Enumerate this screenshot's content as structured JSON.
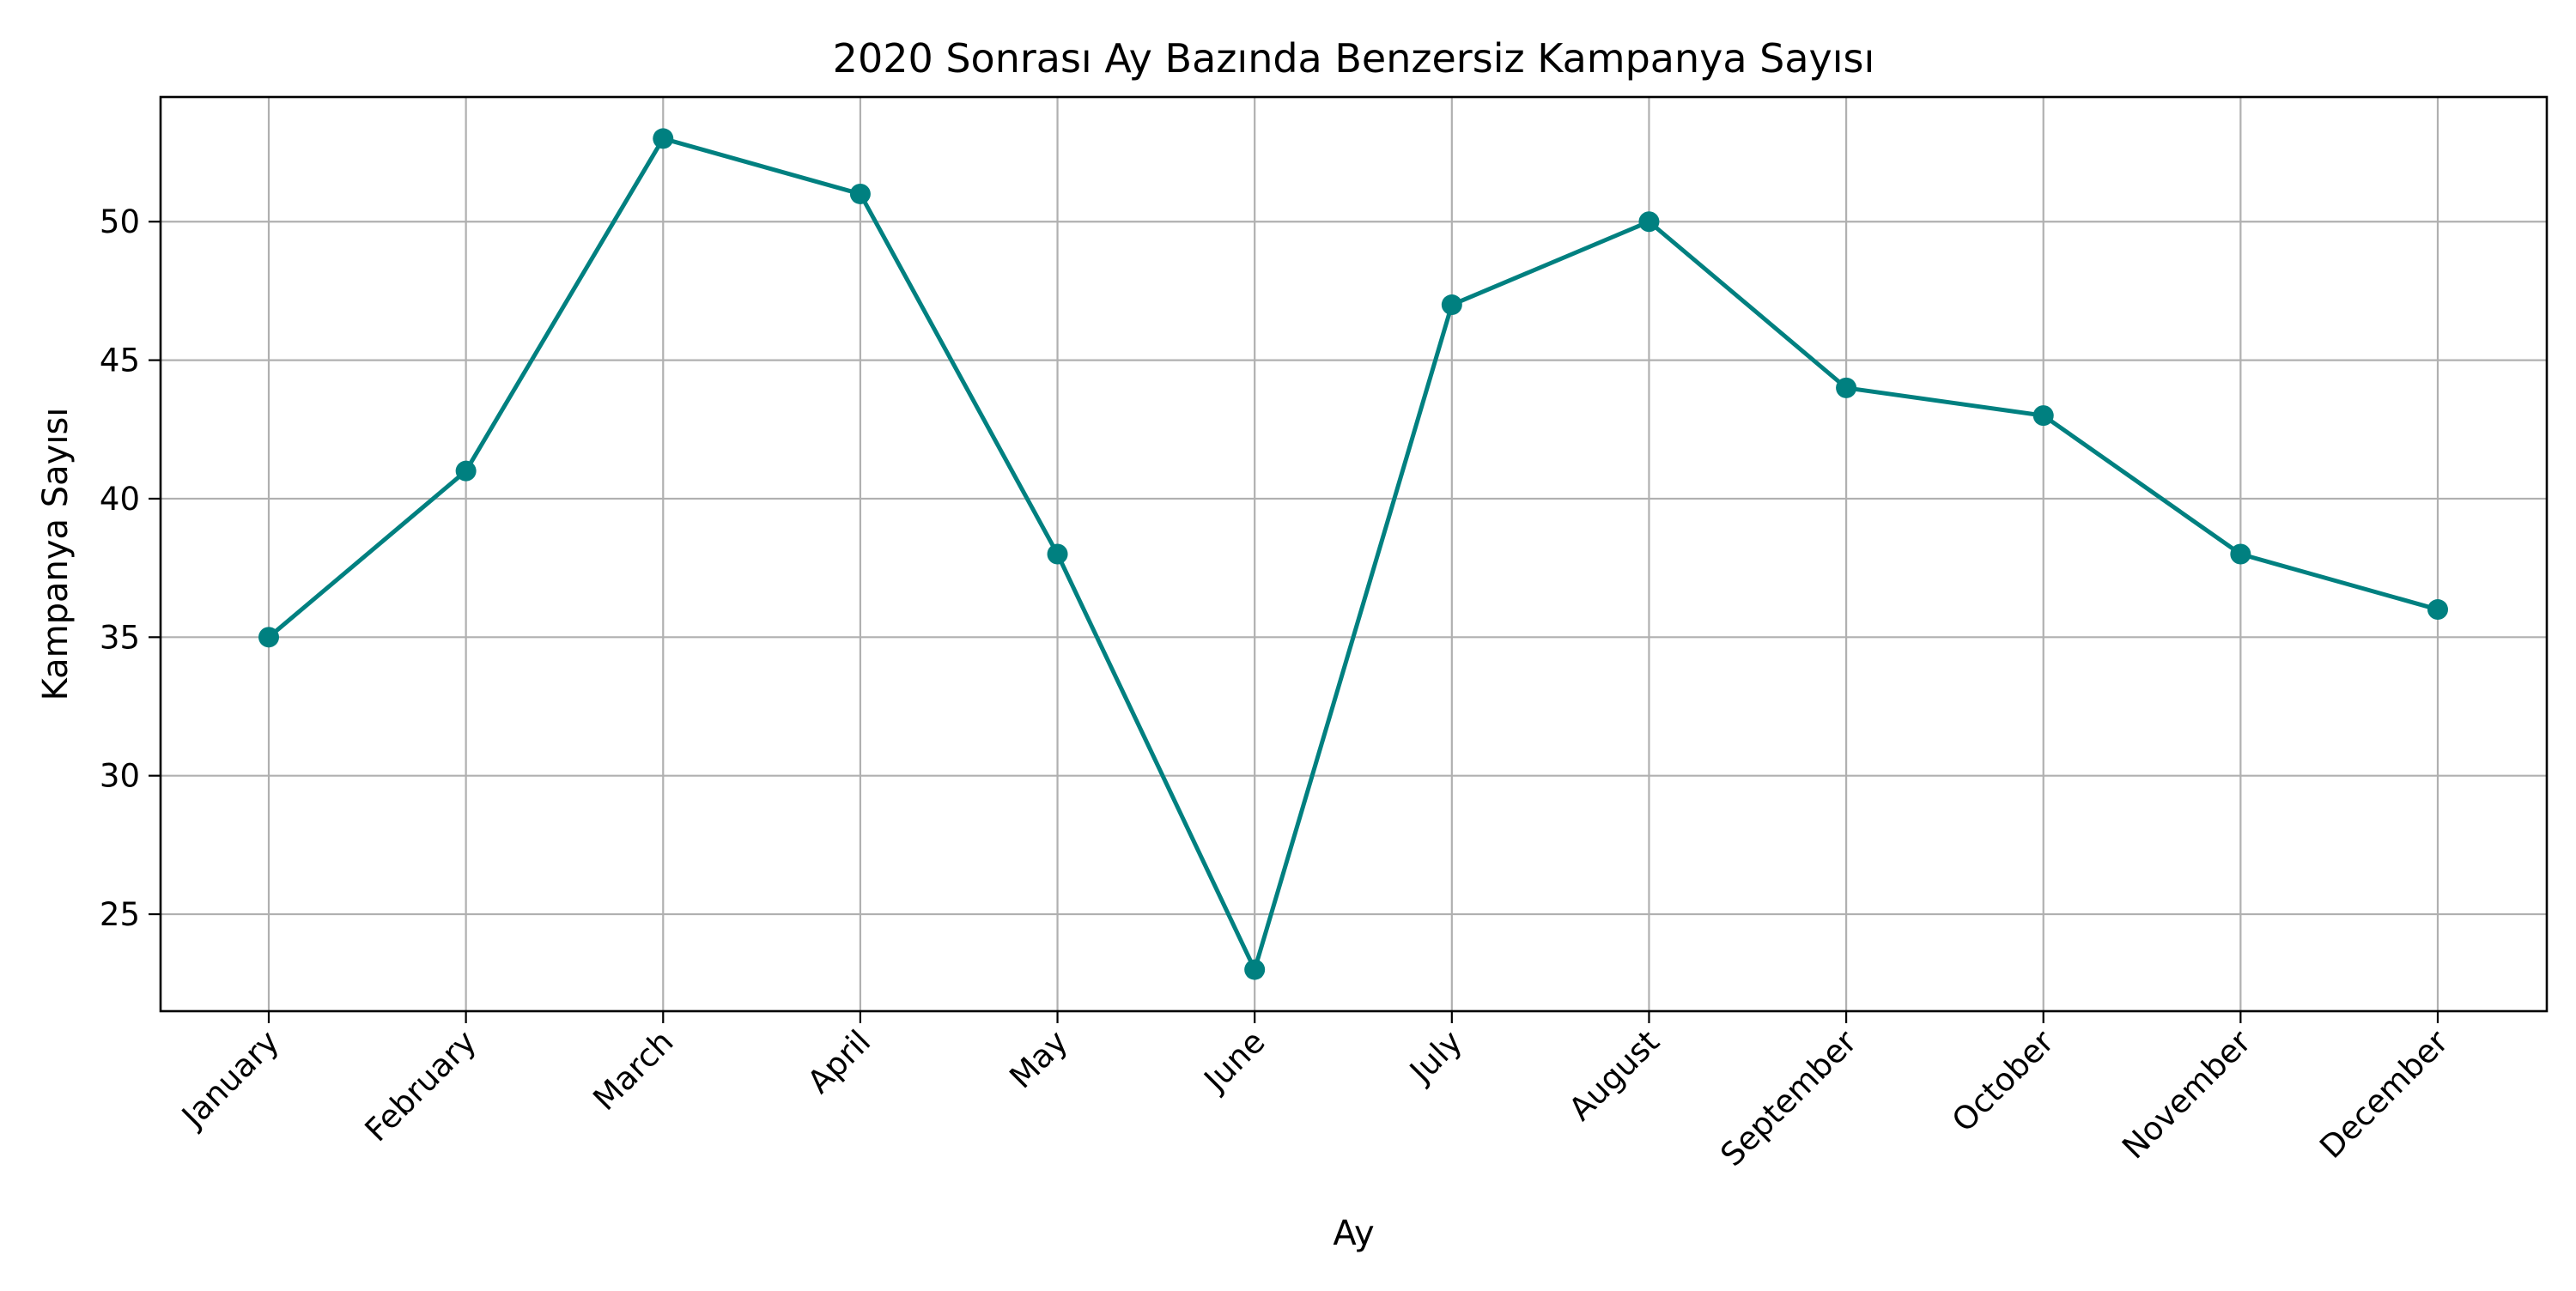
{
  "chart_data": {
    "type": "line",
    "title": "2020 Sonrası Ay Bazında Benzersiz Kampanya Sayısı",
    "xlabel": "Ay",
    "ylabel": "Kampanya Sayısı",
    "categories": [
      "January",
      "February",
      "March",
      "April",
      "May",
      "June",
      "July",
      "August",
      "September",
      "October",
      "November",
      "December"
    ],
    "series": [
      {
        "values": [
          35,
          41,
          53,
          51,
          38,
          23,
          47,
          50,
          44,
          43,
          38,
          36
        ],
        "color": "#008080",
        "marker": "circle"
      }
    ],
    "yticks": [
      25,
      30,
      35,
      40,
      45,
      50
    ],
    "ylim": [
      21.5,
      54.5
    ],
    "grid": true,
    "x_tick_rotation_deg": -45
  }
}
